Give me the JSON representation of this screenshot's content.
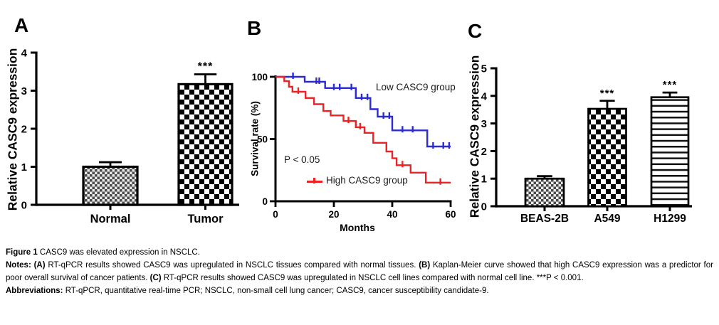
{
  "figure": {
    "panels": [
      {
        "letter": "A"
      },
      {
        "letter": "B"
      },
      {
        "letter": "C"
      }
    ]
  },
  "colors": {
    "low_group": "#2b2bd5",
    "high_group": "#ed2224",
    "axis": "#000000"
  },
  "chart_data": [
    {
      "panel": "A",
      "type": "bar",
      "title": "",
      "xlabel": "",
      "ylabel": "Relative CASC9 expression",
      "categories": [
        "Normal",
        "Tumor"
      ],
      "values": [
        1.0,
        3.17
      ],
      "errors": [
        0.12,
        0.26
      ],
      "significance": [
        "",
        "***"
      ],
      "patterns": [
        "checker-fine",
        "checker-large"
      ],
      "ylim": [
        0,
        4
      ],
      "yticks": [
        0,
        1,
        2,
        3,
        4
      ],
      "grid": false
    },
    {
      "panel": "B",
      "type": "line",
      "subtype": "kaplan-meier",
      "title": "",
      "xlabel": "Months",
      "ylabel": "Survival rate (%)",
      "xlim": [
        0,
        60
      ],
      "ylim": [
        0,
        100
      ],
      "xticks": [
        0,
        20,
        40,
        60
      ],
      "yticks": [
        0,
        50,
        100
      ],
      "p_value_label": "P < 0.05",
      "grid": false,
      "legend_position": "low label upper-right inside plot; high label lower-left inside plot",
      "series": [
        {
          "name": "Low CASC9 group",
          "color": "#2b2bd5",
          "steps": [
            [
              0,
              100
            ],
            [
              10,
              100
            ],
            [
              10,
              96
            ],
            [
              17,
              96
            ],
            [
              17,
              91
            ],
            [
              27.5,
              91
            ],
            [
              27.5,
              83
            ],
            [
              32.5,
              83
            ],
            [
              32.5,
              74
            ],
            [
              35,
              74
            ],
            [
              35,
              68
            ],
            [
              40,
              68
            ],
            [
              40,
              57
            ],
            [
              52,
              57
            ],
            [
              52,
              44
            ],
            [
              60,
              44
            ]
          ],
          "censors": [
            [
              6,
              100
            ],
            [
              14,
              96
            ],
            [
              15,
              96
            ],
            [
              20,
              91
            ],
            [
              22,
              91
            ],
            [
              26,
              91
            ],
            [
              29.5,
              83
            ],
            [
              31.5,
              83
            ],
            [
              37,
              68
            ],
            [
              39,
              68
            ],
            [
              43.5,
              57
            ],
            [
              47,
              57
            ],
            [
              54,
              44
            ],
            [
              57.5,
              44
            ],
            [
              59.5,
              44
            ]
          ]
        },
        {
          "name": "High CASC9 group",
          "color": "#ed2224",
          "steps": [
            [
              0,
              100
            ],
            [
              3,
              100
            ],
            [
              3,
              96.5
            ],
            [
              4.6,
              96.5
            ],
            [
              4.6,
              92
            ],
            [
              5.8,
              92
            ],
            [
              5.8,
              88
            ],
            [
              10.3,
              88
            ],
            [
              10.3,
              83
            ],
            [
              13.2,
              83
            ],
            [
              13.2,
              78
            ],
            [
              16.4,
              78
            ],
            [
              16.4,
              72.5
            ],
            [
              18.9,
              72.5
            ],
            [
              18.9,
              69
            ],
            [
              23.3,
              69
            ],
            [
              23.3,
              64.5
            ],
            [
              27.5,
              64.5
            ],
            [
              27.5,
              59.5
            ],
            [
              30.5,
              59.5
            ],
            [
              30.5,
              55
            ],
            [
              33.5,
              55
            ],
            [
              33.5,
              47
            ],
            [
              38,
              47
            ],
            [
              38,
              40
            ],
            [
              40,
              40
            ],
            [
              40,
              34.5
            ],
            [
              41.5,
              34.5
            ],
            [
              41.5,
              29
            ],
            [
              46.3,
              29
            ],
            [
              46.3,
              23
            ],
            [
              51.5,
              23
            ],
            [
              51.5,
              15
            ],
            [
              60,
              15
            ]
          ],
          "censors": [
            [
              7.8,
              88
            ],
            [
              25,
              64.5
            ],
            [
              29,
              59.5
            ],
            [
              43.5,
              29
            ],
            [
              56.5,
              15
            ]
          ]
        }
      ]
    },
    {
      "panel": "C",
      "type": "bar",
      "title": "",
      "xlabel": "",
      "ylabel": "Relative CASC9 expression",
      "categories": [
        "BEAS-2B",
        "A549",
        "H1299"
      ],
      "values": [
        1.0,
        3.53,
        3.95
      ],
      "errors": [
        0.09,
        0.29,
        0.17
      ],
      "significance": [
        "",
        "***",
        "***"
      ],
      "patterns": [
        "checker-fine",
        "checker-large",
        "hlines"
      ],
      "ylim": [
        0,
        5
      ],
      "yticks": [
        0,
        1,
        2,
        3,
        4,
        5
      ],
      "grid": false
    }
  ],
  "caption": {
    "title": [
      {
        "b": "Figure 1"
      },
      {
        "t": " CASC9 was elevated expression in NSCLC."
      }
    ],
    "notes": [
      {
        "b": "Notes:"
      },
      {
        "t": " "
      },
      {
        "b": "(A)"
      },
      {
        "t": " RT-qPCR results showed CASC9 was upregulated in NSCLC tissues compared with normal tissues. "
      },
      {
        "b": "(B)"
      },
      {
        "t": " Kaplan-Meier curve showed that high CASC9 expression was a predictor for poor overall survival of cancer patients. "
      },
      {
        "b": "(C)"
      },
      {
        "t": " RT-qPCR results showed CASC9 was upregulated in NSCLC cell lines compared with normal cell line. ***P < 0.001."
      }
    ],
    "abbreviations": [
      {
        "b": "Abbreviations:"
      },
      {
        "t": " RT-qPCR, quantitative real-time PCR; NSCLC, non-small cell lung cancer; CASC9, cancer susceptibility candidate-9."
      }
    ]
  }
}
